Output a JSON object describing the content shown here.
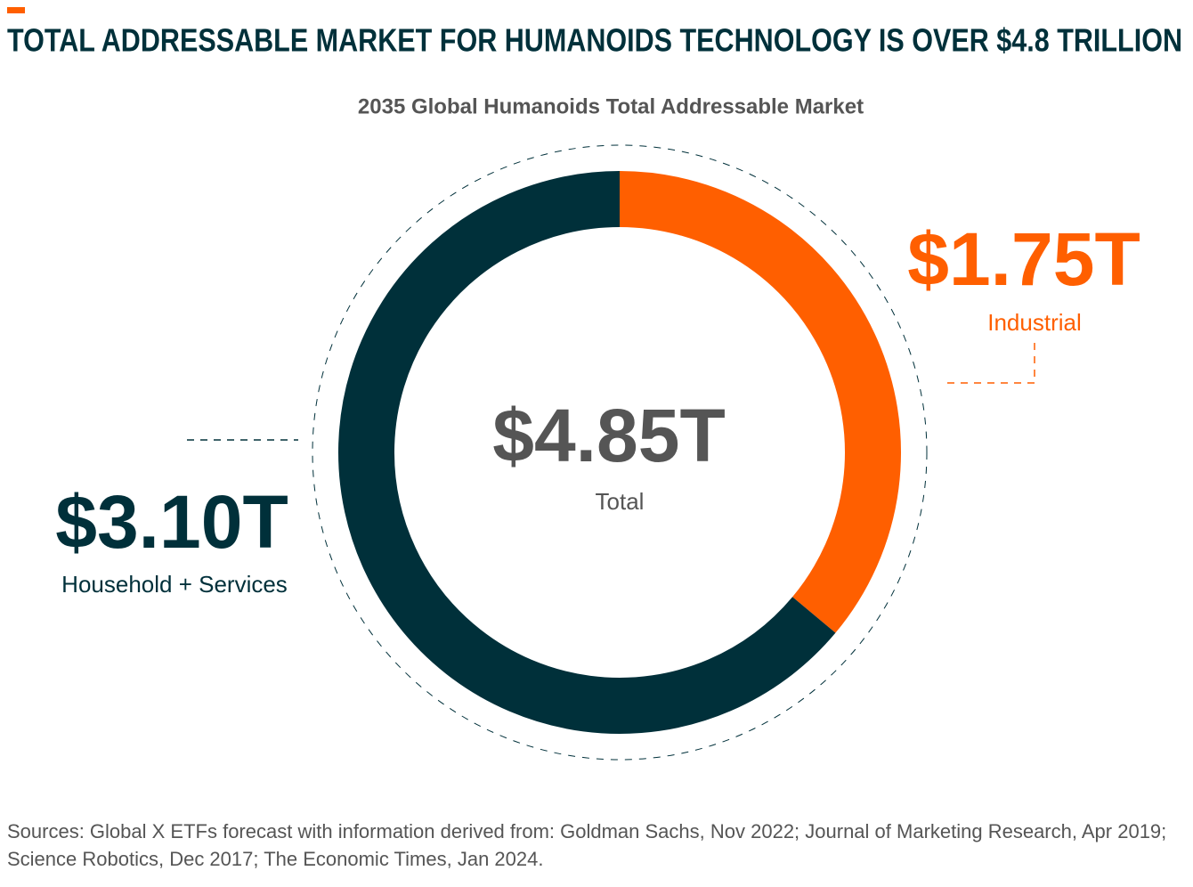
{
  "chart_data": {
    "type": "donut",
    "title": "TOTAL ADDRESSABLE MARKET FOR HUMANOIDS TECHNOLOGY IS OVER $4.8 TRILLION",
    "subtitle": "2035 Global Humanoids Total Addressable Market",
    "categories": [
      "Industrial",
      "Household + Services"
    ],
    "values": [
      1.75,
      3.1
    ],
    "value_labels": [
      "$1.75T",
      "$3.10T"
    ],
    "colors": [
      "#ff5f00",
      "#00303a"
    ],
    "total": {
      "value": 4.85,
      "label": "$4.85T"
    },
    "total_caption": "Total",
    "sources": [
      "Sources: Global X ETFs forecast with information derived from: Goldman Sachs, Nov 2022; Journal of Marketing Research, Apr 2019;",
      "Science Robotics, Dec 2017; The Economic Times, Jan 2024."
    ]
  }
}
